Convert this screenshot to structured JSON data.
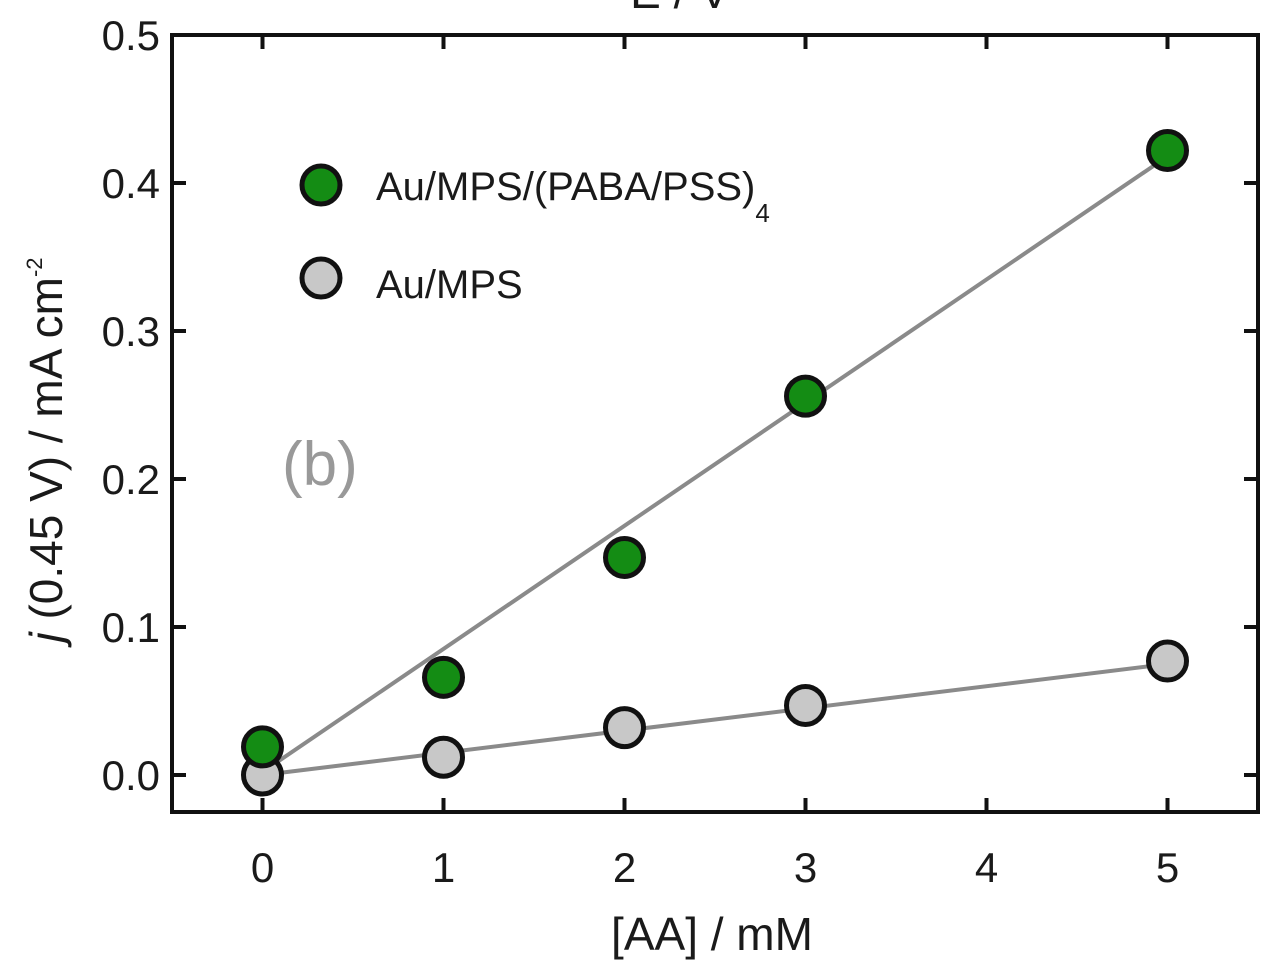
{
  "chart_data": {
    "type": "scatter",
    "top_label": "E / V",
    "panel_label": "(b)",
    "xlabel": "[AA] / mM",
    "ylabel": {
      "italic": "j",
      "main": " (0.45 V) / mA cm",
      "superscript": "-2"
    },
    "xlim": [
      -0.5,
      5.5
    ],
    "ylim": [
      -0.025,
      0.5
    ],
    "x_ticks": [
      "0",
      "1",
      "2",
      "3",
      "4",
      "5"
    ],
    "y_ticks": [
      "0.0",
      "0.1",
      "0.2",
      "0.3",
      "0.4",
      "0.5"
    ],
    "grid": false,
    "legend_position": "upper-left",
    "series": [
      {
        "name": "Au/MPS/(PABA/PSS)",
        "name_subscript": "4",
        "color": "#148c14",
        "x": [
          0,
          1,
          2,
          3,
          5
        ],
        "y": [
          0.019,
          0.066,
          0.147,
          0.256,
          0.422
        ],
        "fit": [
          [
            0,
            0.002
          ],
          [
            5,
            0.418
          ]
        ]
      },
      {
        "name": "Au/MPS",
        "color": "#c8c8c8",
        "x": [
          0,
          1,
          2,
          3,
          5
        ],
        "y": [
          0.0,
          0.012,
          0.032,
          0.047,
          0.077
        ],
        "fit": [
          [
            0,
            0.0
          ],
          [
            5,
            0.075
          ]
        ]
      }
    ],
    "fit_line_color": "#8a8a8a"
  }
}
